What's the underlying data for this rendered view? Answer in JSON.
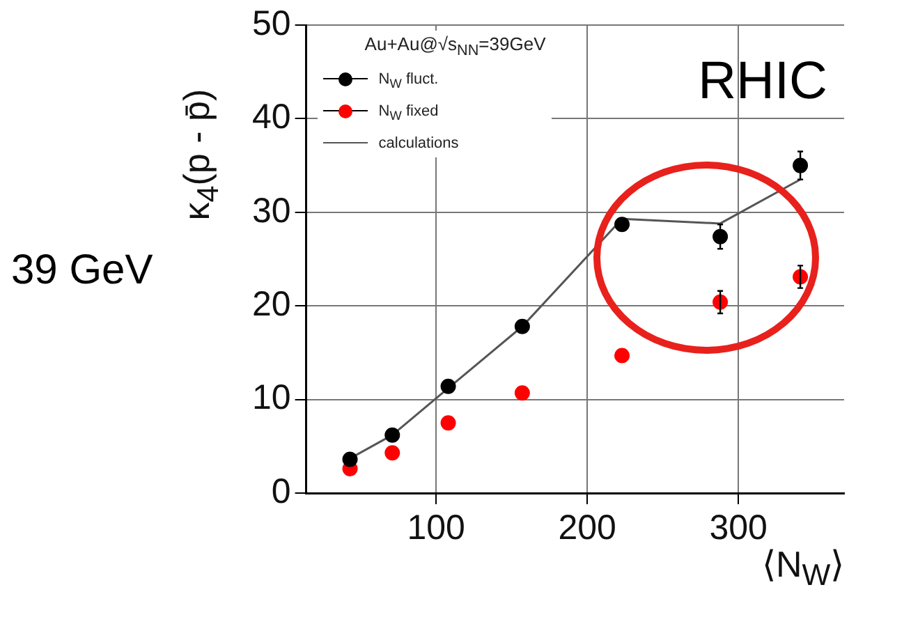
{
  "chart_data": {
    "type": "scatter",
    "xlabel": "⟨N$_{W}$⟩",
    "ylabel": "κ$_{4}$(p - p̄)",
    "legend_title": "Au+Au@√s$_{NN}$=39GeV",
    "annotations": [
      "RHIC",
      "39 GeV"
    ],
    "xlim": [
      14,
      370
    ],
    "xticks": [
      100,
      200,
      300
    ],
    "ylim": [
      0,
      50
    ],
    "yticks": [
      0,
      10,
      20,
      30,
      40,
      50
    ],
    "grid": true,
    "legend": "top left",
    "marker": "circle",
    "series": [
      {
        "name": "N$_{W}$ fluct.",
        "color": "#000000",
        "x": [
          43,
          71,
          108,
          157,
          223,
          288,
          341
        ],
        "values": [
          3.6,
          6.2,
          11.4,
          17.8,
          28.7,
          27.4,
          35.0
        ],
        "errors": [
          null,
          null,
          null,
          null,
          null,
          1.3,
          1.5
        ]
      },
      {
        "name": "N$_{W}$ fixed",
        "color": "#ff0000",
        "x": [
          43,
          71,
          108,
          157,
          223,
          288,
          341
        ],
        "values": [
          2.6,
          4.3,
          7.5,
          10.7,
          14.7,
          20.4,
          23.1
        ],
        "errors": [
          null,
          null,
          null,
          null,
          null,
          1.2,
          1.2
        ]
      },
      {
        "name": "calculations",
        "type": "line",
        "marker": "none",
        "color": "#555555",
        "x": [
          43,
          71,
          108,
          157,
          223,
          288,
          341
        ],
        "values": [
          3.7,
          6.2,
          11.2,
          17.8,
          29.3,
          28.8,
          33.5
        ]
      }
    ]
  }
}
